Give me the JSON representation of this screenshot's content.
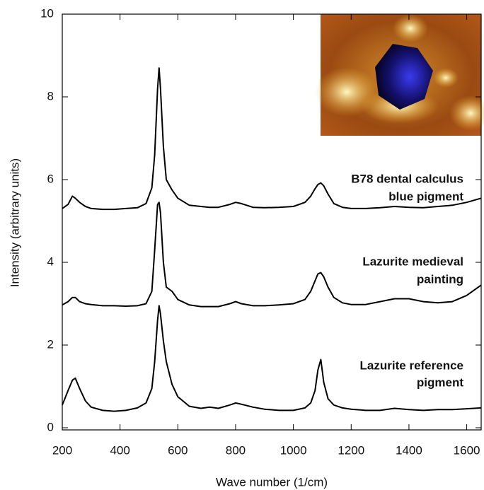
{
  "chart_data": {
    "type": "line",
    "x_label": "Wave number (1/cm)",
    "y_label": "Intensity (arbitrary units)",
    "x": [
      200,
      220,
      235,
      245,
      260,
      280,
      300,
      340,
      380,
      420,
      460,
      490,
      510,
      520,
      530,
      535,
      540,
      550,
      560,
      580,
      600,
      640,
      680,
      710,
      740,
      780,
      800,
      820,
      860,
      900,
      950,
      1000,
      1040,
      1060,
      1075,
      1085,
      1095,
      1105,
      1120,
      1140,
      1170,
      1200,
      1250,
      1300,
      1350,
      1400,
      1450,
      1500,
      1550,
      1600,
      1650
    ],
    "series": [
      {
        "color": "#000000",
        "values": [
          0.55,
          0.9,
          1.15,
          1.2,
          0.95,
          0.65,
          0.5,
          0.42,
          0.4,
          0.42,
          0.48,
          0.6,
          0.95,
          1.6,
          2.6,
          2.95,
          2.75,
          2.1,
          1.6,
          1.05,
          0.75,
          0.52,
          0.47,
          0.5,
          0.47,
          0.55,
          0.6,
          0.57,
          0.5,
          0.45,
          0.42,
          0.42,
          0.48,
          0.6,
          0.9,
          1.4,
          1.65,
          1.1,
          0.7,
          0.55,
          0.48,
          0.45,
          0.42,
          0.42,
          0.47,
          0.44,
          0.42,
          0.44,
          0.44,
          0.46,
          0.48
        ]
      },
      {
        "color": "#000000",
        "values": [
          2.97,
          3.05,
          3.15,
          3.15,
          3.05,
          3.0,
          2.98,
          2.95,
          2.95,
          2.94,
          2.95,
          3.0,
          3.3,
          4.3,
          5.4,
          5.45,
          5.2,
          4.0,
          3.4,
          3.3,
          3.1,
          2.97,
          2.93,
          2.93,
          2.93,
          3.0,
          3.05,
          3.0,
          2.95,
          2.95,
          2.97,
          3.0,
          3.1,
          3.3,
          3.55,
          3.72,
          3.75,
          3.65,
          3.4,
          3.15,
          3.02,
          2.98,
          2.98,
          3.05,
          3.12,
          3.12,
          3.05,
          3.02,
          3.05,
          3.2,
          3.45
        ]
      },
      {
        "color": "#000000",
        "values": [
          5.3,
          5.4,
          5.6,
          5.55,
          5.45,
          5.35,
          5.3,
          5.28,
          5.28,
          5.3,
          5.32,
          5.42,
          5.8,
          6.6,
          8.2,
          8.7,
          8.2,
          6.8,
          6.0,
          5.75,
          5.55,
          5.38,
          5.35,
          5.33,
          5.33,
          5.4,
          5.45,
          5.42,
          5.33,
          5.32,
          5.33,
          5.35,
          5.45,
          5.6,
          5.78,
          5.88,
          5.92,
          5.85,
          5.65,
          5.42,
          5.33,
          5.3,
          5.3,
          5.32,
          5.35,
          5.33,
          5.32,
          5.35,
          5.38,
          5.45,
          5.55
        ]
      }
    ],
    "annotations": [
      [
        "B78 dental calculus",
        "blue pigment"
      ],
      [
        "Lazurite medieval",
        "painting"
      ],
      [
        "Lazurite reference",
        "pigment"
      ]
    ],
    "xlim": [
      200,
      1650
    ],
    "xticks": [
      200,
      400,
      600,
      800,
      1000,
      1200,
      1400,
      1600
    ],
    "ylim": [
      0,
      10
    ],
    "yticks": [
      0,
      2,
      4,
      6,
      8,
      10
    ]
  }
}
